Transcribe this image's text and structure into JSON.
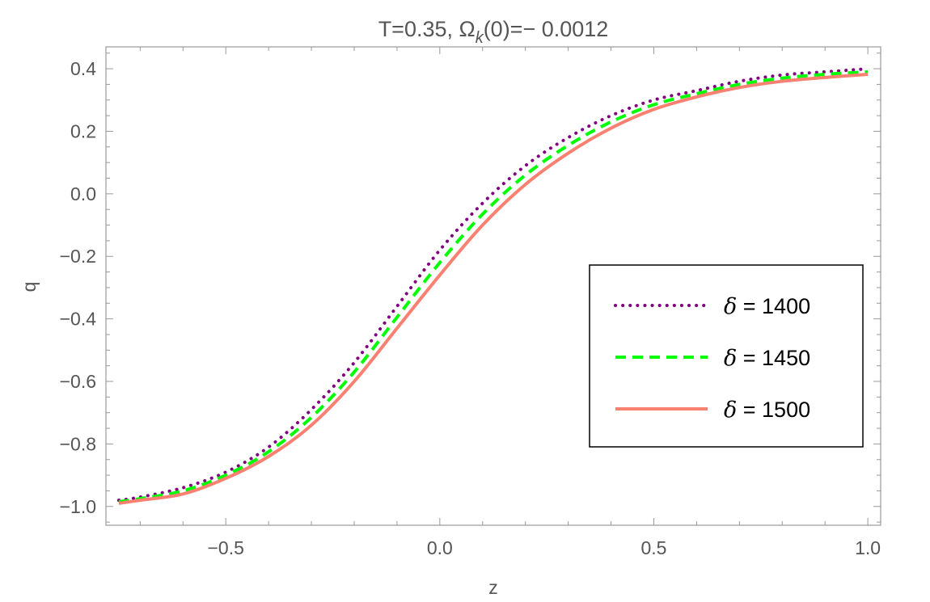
{
  "chart_data": {
    "type": "line",
    "title_prefix": "T=0.35, Ω",
    "title_subscript": "k",
    "title_suffix": "(0)=− 0.0012",
    "xlabel": "z",
    "ylabel": "q",
    "xlim": [
      -0.78,
      1.03
    ],
    "ylim": [
      -1.06,
      0.47
    ],
    "xticks": [
      {
        "value": -0.5,
        "label": "−0.5"
      },
      {
        "value": 0.0,
        "label": "0.0"
      },
      {
        "value": 0.5,
        "label": "0.5"
      },
      {
        "value": 1.0,
        "label": "1.0"
      }
    ],
    "yticks": [
      {
        "value": 0.4,
        "label": "0.4"
      },
      {
        "value": 0.2,
        "label": "0.2"
      },
      {
        "value": 0.0,
        "label": "0.0"
      },
      {
        "value": -0.2,
        "label": "−0.2"
      },
      {
        "value": -0.4,
        "label": "−0.4"
      },
      {
        "value": -0.6,
        "label": "−0.6"
      },
      {
        "value": -0.8,
        "label": "−0.8"
      },
      {
        "value": -1.0,
        "label": "−1.0"
      }
    ],
    "grid": false,
    "legend_position": "right",
    "series": [
      {
        "name": "δ = 1400",
        "legend_symbol": "δ",
        "legend_text": " = 1400",
        "color": "#800080",
        "style": "dotted",
        "x": [
          -0.75,
          -0.7,
          -0.6,
          -0.5,
          -0.4,
          -0.3,
          -0.2,
          -0.1,
          0.0,
          0.1,
          0.2,
          0.3,
          0.4,
          0.5,
          0.6,
          0.7,
          0.8,
          0.9,
          1.0
        ],
        "y": [
          -0.98,
          -0.97,
          -0.94,
          -0.89,
          -0.81,
          -0.69,
          -0.54,
          -0.36,
          -0.18,
          -0.03,
          0.09,
          0.18,
          0.25,
          0.3,
          0.33,
          0.36,
          0.38,
          0.39,
          0.4
        ]
      },
      {
        "name": "δ = 1450",
        "legend_symbol": "δ",
        "legend_text": " = 1450",
        "color": "#00ff00",
        "style": "dashed",
        "x": [
          -0.75,
          -0.7,
          -0.6,
          -0.5,
          -0.4,
          -0.3,
          -0.2,
          -0.1,
          0.0,
          0.1,
          0.2,
          0.3,
          0.4,
          0.5,
          0.6,
          0.7,
          0.8,
          0.9,
          1.0
        ],
        "y": [
          -0.985,
          -0.975,
          -0.95,
          -0.9,
          -0.825,
          -0.715,
          -0.57,
          -0.395,
          -0.22,
          -0.065,
          0.06,
          0.155,
          0.23,
          0.285,
          0.32,
          0.35,
          0.37,
          0.382,
          0.39
        ]
      },
      {
        "name": "δ = 1500",
        "legend_symbol": "δ",
        "legend_text": " = 1500",
        "color": "#fa8072",
        "style": "solid",
        "x": [
          -0.75,
          -0.7,
          -0.6,
          -0.5,
          -0.4,
          -0.3,
          -0.2,
          -0.1,
          0.0,
          0.1,
          0.2,
          0.3,
          0.4,
          0.5,
          0.6,
          0.7,
          0.8,
          0.9,
          1.0
        ],
        "y": [
          -0.99,
          -0.98,
          -0.96,
          -0.91,
          -0.84,
          -0.74,
          -0.6,
          -0.43,
          -0.26,
          -0.1,
          0.03,
          0.13,
          0.21,
          0.27,
          0.31,
          0.34,
          0.36,
          0.372,
          0.382
        ]
      }
    ]
  }
}
